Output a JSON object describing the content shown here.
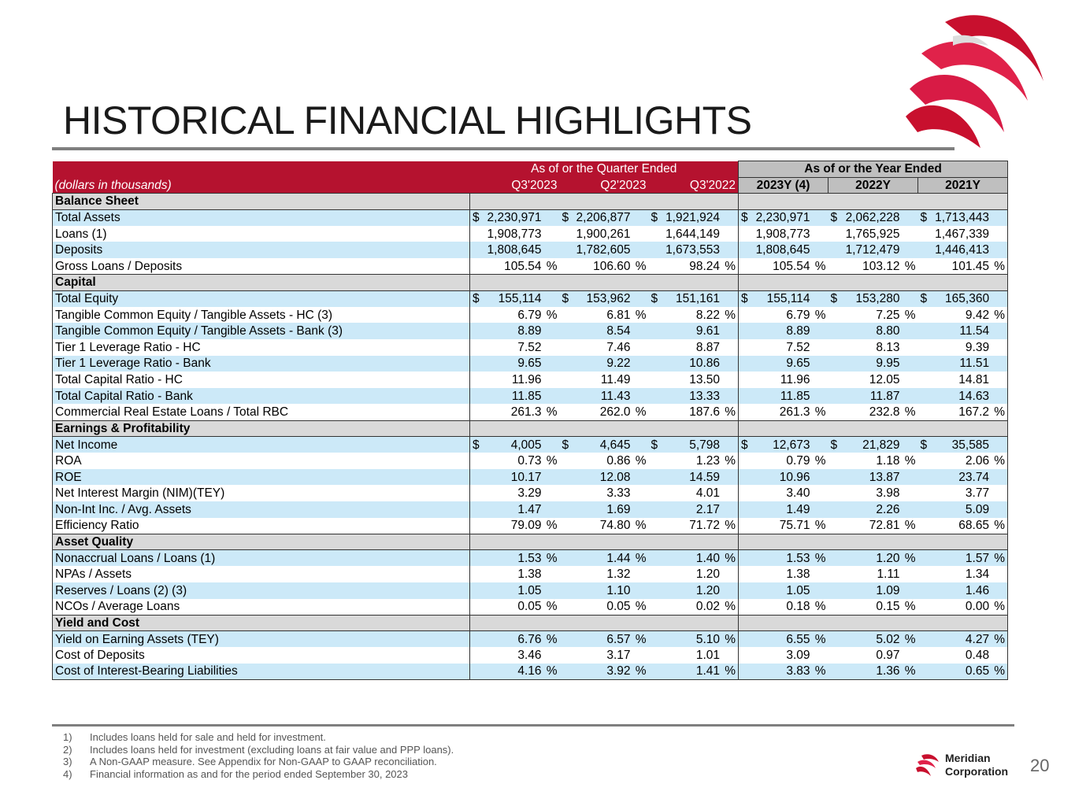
{
  "title": "HISTORICAL FINANCIAL HIGHLIGHTS",
  "header": {
    "units": "(dollars in thousands)",
    "quarter_group": "As of or the Quarter Ended",
    "year_group": "As of or the Year Ended",
    "columns": [
      "Q3'2023",
      "Q2'2023",
      "Q3'2022",
      "2023Y (4)",
      "2022Y",
      "2021Y"
    ]
  },
  "rows": [
    {
      "section": "Balance Sheet"
    },
    {
      "label": "Total Assets",
      "prefix": "$",
      "values": [
        "2,230,971",
        "2,206,877",
        "1,921,924",
        "2,230,971",
        "2,062,228",
        "1,713,443"
      ]
    },
    {
      "label": "Loans (1)",
      "values": [
        "1,908,773",
        "1,900,261",
        "1,644,149",
        "1,908,773",
        "1,765,925",
        "1,467,339"
      ]
    },
    {
      "label": "Deposits",
      "values": [
        "1,808,645",
        "1,782,605",
        "1,673,553",
        "1,808,645",
        "1,712,479",
        "1,446,413"
      ]
    },
    {
      "label": "Gross Loans / Deposits",
      "suffix": "%",
      "values": [
        "105.54",
        "106.60",
        "98.24",
        "105.54",
        "103.12",
        "101.45"
      ]
    },
    {
      "section": "Capital"
    },
    {
      "label": "Total Equity",
      "prefix": "$",
      "values": [
        "155,114",
        "153,962",
        "151,161",
        "155,114",
        "153,280",
        "165,360"
      ]
    },
    {
      "label": "Tangible Common Equity / Tangible Assets - HC (3)",
      "suffix": "%",
      "values": [
        "6.79",
        "6.81",
        "8.22",
        "6.79",
        "7.25",
        "9.42"
      ]
    },
    {
      "label": "Tangible Common Equity / Tangible Assets - Bank (3)",
      "values": [
        "8.89",
        "8.54",
        "9.61",
        "8.89",
        "8.80",
        "11.54"
      ]
    },
    {
      "label": "Tier 1 Leverage Ratio - HC",
      "values": [
        "7.52",
        "7.46",
        "8.87",
        "7.52",
        "8.13",
        "9.39"
      ]
    },
    {
      "label": "Tier 1 Leverage Ratio - Bank",
      "values": [
        "9.65",
        "9.22",
        "10.86",
        "9.65",
        "9.95",
        "11.51"
      ]
    },
    {
      "label": "Total Capital Ratio - HC",
      "values": [
        "11.96",
        "11.49",
        "13.50",
        "11.96",
        "12.05",
        "14.81"
      ]
    },
    {
      "label": "Total Capital Ratio - Bank",
      "values": [
        "11.85",
        "11.43",
        "13.33",
        "11.85",
        "11.87",
        "14.63"
      ]
    },
    {
      "label": "Commercial Real Estate Loans / Total RBC",
      "suffix": "%",
      "values": [
        "261.3",
        "262.0",
        "187.6",
        "261.3",
        "232.8",
        "167.2"
      ]
    },
    {
      "section": "Earnings & Profitability"
    },
    {
      "label": "Net Income",
      "prefix": "$",
      "values": [
        "4,005",
        "4,645",
        "5,798",
        "12,673",
        "21,829",
        "35,585"
      ]
    },
    {
      "label": "ROA",
      "suffix": "%",
      "values": [
        "0.73",
        "0.86",
        "1.23",
        "0.79",
        "1.18",
        "2.06"
      ]
    },
    {
      "label": "ROE",
      "values": [
        "10.17",
        "12.08",
        "14.59",
        "10.96",
        "13.87",
        "23.74"
      ]
    },
    {
      "label": "Net Interest Margin (NIM)(TEY)",
      "values": [
        "3.29",
        "3.33",
        "4.01",
        "3.40",
        "3.98",
        "3.77"
      ]
    },
    {
      "label": "Non-Int Inc. / Avg. Assets",
      "values": [
        "1.47",
        "1.69",
        "2.17",
        "1.49",
        "2.26",
        "5.09"
      ]
    },
    {
      "label": "Efficiency Ratio",
      "suffix": "%",
      "values": [
        "79.09",
        "74.80",
        "71.72",
        "75.71",
        "72.81",
        "68.65"
      ]
    },
    {
      "section": "Asset Quality"
    },
    {
      "label": "Nonaccrual Loans / Loans (1)",
      "suffix": "%",
      "values": [
        "1.53",
        "1.44",
        "1.40",
        "1.53",
        "1.20",
        "1.57"
      ]
    },
    {
      "label": "NPAs / Assets",
      "values": [
        "1.38",
        "1.32",
        "1.20",
        "1.38",
        "1.11",
        "1.34"
      ]
    },
    {
      "label": "Reserves / Loans (2) (3)",
      "values": [
        "1.05",
        "1.10",
        "1.20",
        "1.05",
        "1.09",
        "1.46"
      ]
    },
    {
      "label": "NCOs / Average Loans",
      "suffix": "%",
      "values": [
        "0.05",
        "0.05",
        "0.02",
        "0.18",
        "0.15",
        "0.00"
      ]
    },
    {
      "section": "Yield and Cost"
    },
    {
      "label": "Yield on Earning Assets (TEY)",
      "suffix": "%",
      "values": [
        "6.76",
        "6.57",
        "5.10",
        "6.55",
        "5.02",
        "4.27"
      ]
    },
    {
      "label": "Cost of Deposits",
      "values": [
        "3.46",
        "3.17",
        "1.01",
        "3.09",
        "0.97",
        "0.48"
      ]
    },
    {
      "label": "Cost of Interest-Bearing Liabilities",
      "suffix": "%",
      "values": [
        "4.16",
        "3.92",
        "1.41",
        "3.83",
        "1.36",
        "0.65"
      ]
    }
  ],
  "footnotes": [
    {
      "num": "1)",
      "text": "Includes loans held for sale and held for investment."
    },
    {
      "num": "2)",
      "text": "Includes loans held for investment (excluding loans at fair value and PPP loans)."
    },
    {
      "num": "3)",
      "text": "A Non-GAAP measure. See Appendix for Non-GAAP to GAAP reconciliation."
    },
    {
      "num": "4)",
      "text": "Financial information as and for the period ended September 30, 2023"
    }
  ],
  "footer": {
    "company_line1": "Meridian",
    "company_line2": "Corporation",
    "page_number": "20"
  },
  "colors": {
    "brand_red": "#b5122f",
    "row_blue": "#cce9f8",
    "section_grey": "#d9d9d9"
  }
}
